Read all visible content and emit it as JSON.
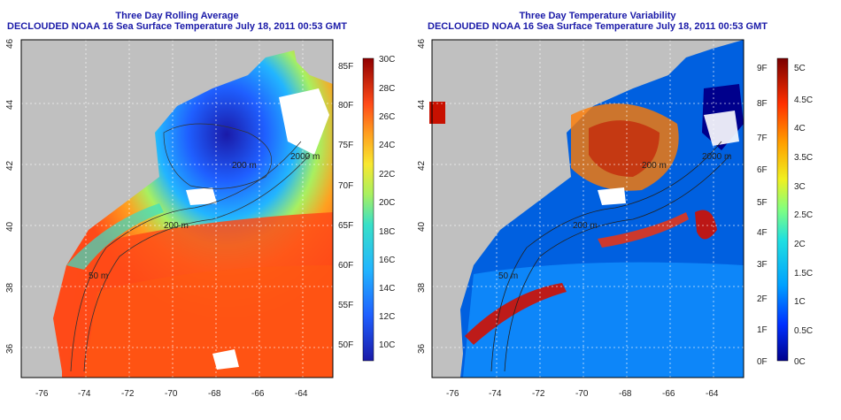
{
  "left_panel": {
    "title1": "Three Day Rolling Average",
    "title2": "DECLOUDED NOAA 16 Sea Surface Temperature July 18, 2011 00:53 GMT",
    "x_ticks": [
      "-76",
      "-74",
      "-72",
      "-70",
      "-68",
      "-66",
      "-64"
    ],
    "y_ticks": [
      "36",
      "38",
      "40",
      "42",
      "44",
      "46"
    ],
    "contour_labels": [
      "200 m",
      "50 m",
      "200 m",
      "2000 m"
    ],
    "colorbar_f": [
      "85F",
      "80F",
      "75F",
      "70F",
      "65F",
      "60F",
      "55F",
      "50F"
    ],
    "colorbar_c": [
      "30C",
      "28C",
      "26C",
      "24C",
      "22C",
      "20C",
      "18C",
      "16C",
      "14C",
      "12C",
      "10C"
    ],
    "colors": [
      "#1a1aa8",
      "#1f5fff",
      "#22b5ff",
      "#38e0c8",
      "#a8f060",
      "#f8e830",
      "#ffa020",
      "#ff4a18",
      "#e02818",
      "#900000"
    ]
  },
  "right_panel": {
    "title1": "Three Day Temperature Variability",
    "title2": "DECLOUDED NOAA 16 Sea Surface Temperature July 18, 2011 00:53 GMT",
    "x_ticks": [
      "-76",
      "-74",
      "-72",
      "-70",
      "-68",
      "-66",
      "-64"
    ],
    "y_ticks": [
      "36",
      "38",
      "40",
      "42",
      "44",
      "46"
    ],
    "contour_labels": [
      "200 m",
      "50 m",
      "200 m",
      "2000 m"
    ],
    "colorbar_f": [
      "9F",
      "8F",
      "7F",
      "6F",
      "5F",
      "4F",
      "3F",
      "2F",
      "1F",
      "0F"
    ],
    "colorbar_c": [
      "5C",
      "4.5C",
      "4C",
      "3.5C",
      "3C",
      "2.5C",
      "2C",
      "1.5C",
      "1C",
      "0.5C",
      "0C"
    ],
    "colors": [
      "#00008c",
      "#0030ff",
      "#00a0ff",
      "#20e0e0",
      "#80ff80",
      "#f0f020",
      "#ffa000",
      "#ff3000",
      "#c00000",
      "#7a0000"
    ]
  }
}
